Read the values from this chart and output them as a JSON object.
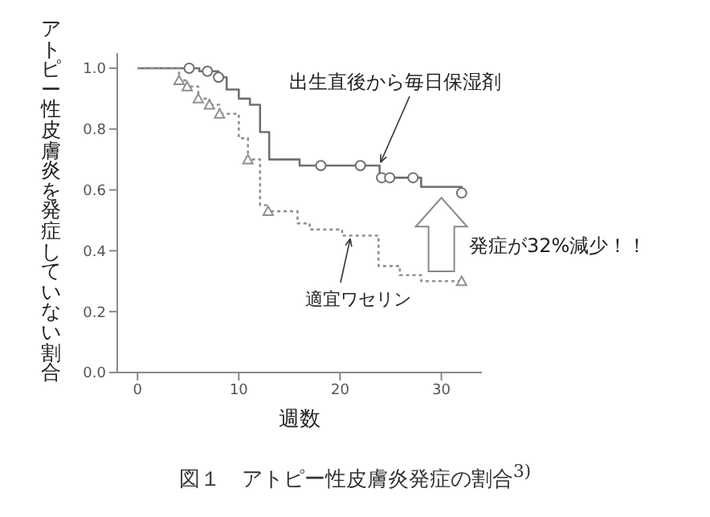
{
  "chart_data": {
    "type": "step",
    "title": "図１　アトピー性皮膚炎発症の割合$^{3)}$",
    "xlabel": "週数",
    "ylabel": "アトピー性皮膚炎を発症していない割合",
    "xlim": [
      -2,
      34
    ],
    "xticks": [
      0,
      10,
      20,
      30
    ],
    "ylim": [
      0,
      1.05
    ],
    "yticks": [
      {
        "value": 0,
        "label": "0.0"
      },
      {
        "value": 0.2,
        "label": "0.2"
      },
      {
        "value": 0.4,
        "label": "0.4"
      },
      {
        "value": 0.6,
        "label": "0.6"
      },
      {
        "value": 0.8,
        "label": "0.8"
      },
      {
        "value": 1,
        "label": "1.0"
      }
    ],
    "series": [
      {
        "type": "step",
        "color": "#707070",
        "line_style": "solid",
        "marker": "none",
        "x": [
          0,
          6.1,
          8,
          8.8,
          10,
          11.1,
          12.1,
          13,
          16,
          23.9,
          28,
          32
        ],
        "values": [
          1,
          0.99,
          0.97,
          0.93,
          0.9,
          0.88,
          0.79,
          0.7,
          0.68,
          0.64,
          0.61,
          0.59
        ]
      },
      {
        "type": "step",
        "color": "#909090",
        "line_style": "dotted",
        "marker": "none",
        "x": [
          0,
          4.1,
          4.9,
          6,
          7.1,
          8.1,
          10,
          10.9,
          12.1,
          12.9,
          15.8,
          17,
          20.2,
          23.8,
          25.9,
          28,
          32
        ],
        "values": [
          1,
          0.96,
          0.94,
          0.9,
          0.88,
          0.85,
          0.77,
          0.7,
          0.55,
          0.53,
          0.49,
          0.47,
          0.45,
          0.35,
          0.32,
          0.3,
          0.3
        ]
      },
      {
        "type": "scatter",
        "color": "#707070",
        "marker": "circle",
        "x": [
          5.1,
          6.9,
          8,
          18.1,
          22,
          24.1,
          24.9,
          27.2,
          32
        ],
        "values": [
          1,
          0.99,
          0.97,
          0.68,
          0.68,
          0.64,
          0.64,
          0.64,
          0.59
        ]
      },
      {
        "type": "scatter",
        "color": "#909090",
        "marker": "triangle",
        "x": [
          4.1,
          4.9,
          6,
          7.1,
          8.1,
          10.9,
          12.9,
          32
        ],
        "values": [
          0.96,
          0.94,
          0.9,
          0.88,
          0.85,
          0.7,
          0.53,
          0.3
        ]
      }
    ],
    "annotations": [
      {
        "text": "出生直後から毎日保湿剤",
        "x": 24,
        "y": 0.68
      },
      {
        "text": "適宜ワセリン",
        "x": 21,
        "y": 0.45
      },
      {
        "text": "発症が32%減少！！",
        "x": 30,
        "y": 0.59
      }
    ]
  }
}
